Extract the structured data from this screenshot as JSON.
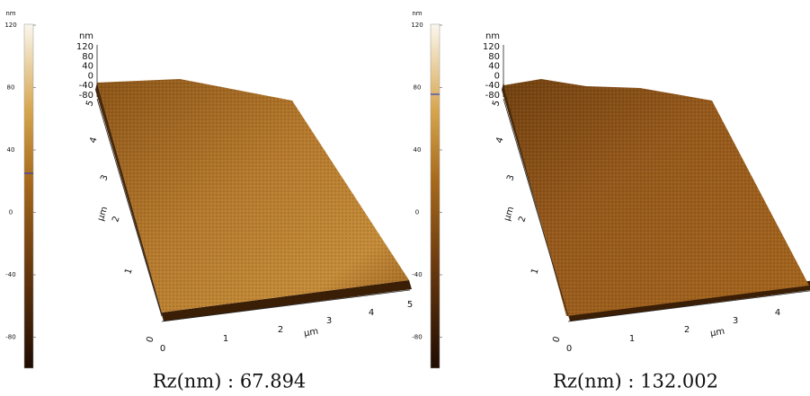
{
  "panels": [
    {
      "colorbar": {
        "unit": "nm",
        "ticks": [
          "120",
          "80",
          "40",
          "0",
          "-40",
          "-80"
        ]
      },
      "z_axis": {
        "unit": "nm",
        "ticks": [
          "120",
          "80",
          "40",
          "0",
          "-40",
          "-80"
        ]
      },
      "y_axis": {
        "unit": "µm",
        "ticks": [
          "5",
          "4",
          "3",
          "2",
          "1",
          "0"
        ]
      },
      "x_axis": {
        "unit": "µm",
        "ticks": [
          "0",
          "1",
          "2",
          "3",
          "4",
          "5"
        ]
      },
      "caption": "Rz(nm) : 67.894"
    },
    {
      "colorbar": {
        "unit": "nm",
        "ticks": [
          "120",
          "80",
          "40",
          "0",
          "-40",
          "-80"
        ]
      },
      "z_axis": {
        "unit": "nm",
        "ticks": [
          "120",
          "80",
          "40",
          "0",
          "-40",
          "-80"
        ]
      },
      "y_axis": {
        "unit": "µm",
        "ticks": [
          "5",
          "4",
          "3",
          "2",
          "1",
          "0"
        ]
      },
      "x_axis": {
        "unit": "µm",
        "ticks": [
          "0",
          "1",
          "2",
          "3",
          "4"
        ]
      },
      "caption": "Rz(nm) : 132.002"
    }
  ]
}
